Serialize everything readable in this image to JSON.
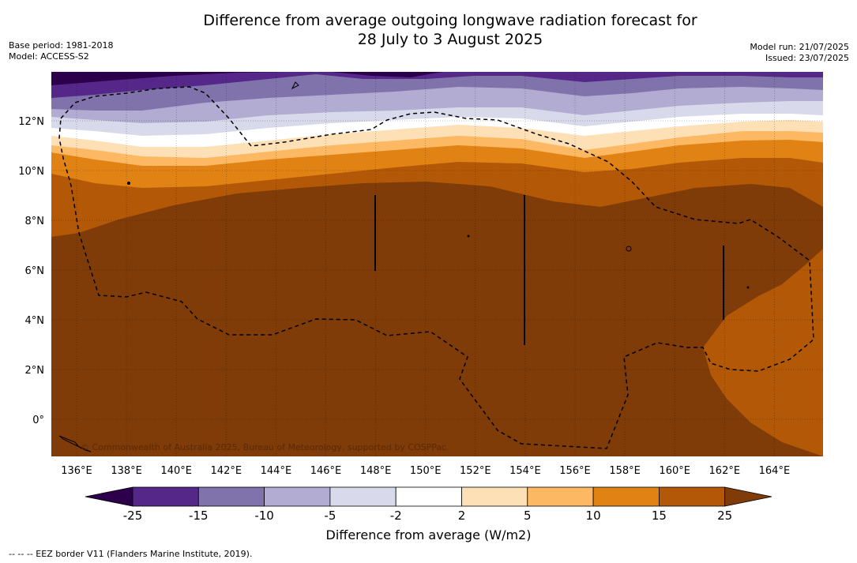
{
  "title_line1": "Difference from average outgoing longwave radiation forecast for",
  "title_line2": "28 July to 3 August 2025",
  "base_period": "Base period: 1981-2018",
  "model": "Model: ACCESS-S2",
  "model_run": "Model run: 21/07/2025",
  "issued": "Issued: 23/07/2025",
  "lat_labels": [
    "12°N",
    "10°N",
    "8°N",
    "6°N",
    "4°N",
    "2°N",
    "0°"
  ],
  "lon_labels": [
    "136°E",
    "138°E",
    "140°E",
    "142°E",
    "144°E",
    "146°E",
    "148°E",
    "150°E",
    "152°E",
    "154°E",
    "156°E",
    "158°E",
    "160°E",
    "162°E",
    "164°E"
  ],
  "copyright": "© Commonwealth of Australia 2025, Bureau of Meteorology, supported by COSPPac",
  "colorbar": {
    "ticks": [
      "-25",
      "-15",
      "-10",
      "-5",
      "-2",
      "2",
      "5",
      "10",
      "15",
      "25"
    ],
    "colors": [
      "#2d004b",
      "#542788",
      "#8073ac",
      "#b2abd2",
      "#d8daeb",
      "#ffffff",
      "#fee0b6",
      "#fdb863",
      "#e08214",
      "#b35806",
      "#7f3b08"
    ],
    "title": "Difference from average (W/m2)"
  },
  "footnote": "-- -- -- EEZ border V11 (Flanders Marine Institute, 2019)."
}
